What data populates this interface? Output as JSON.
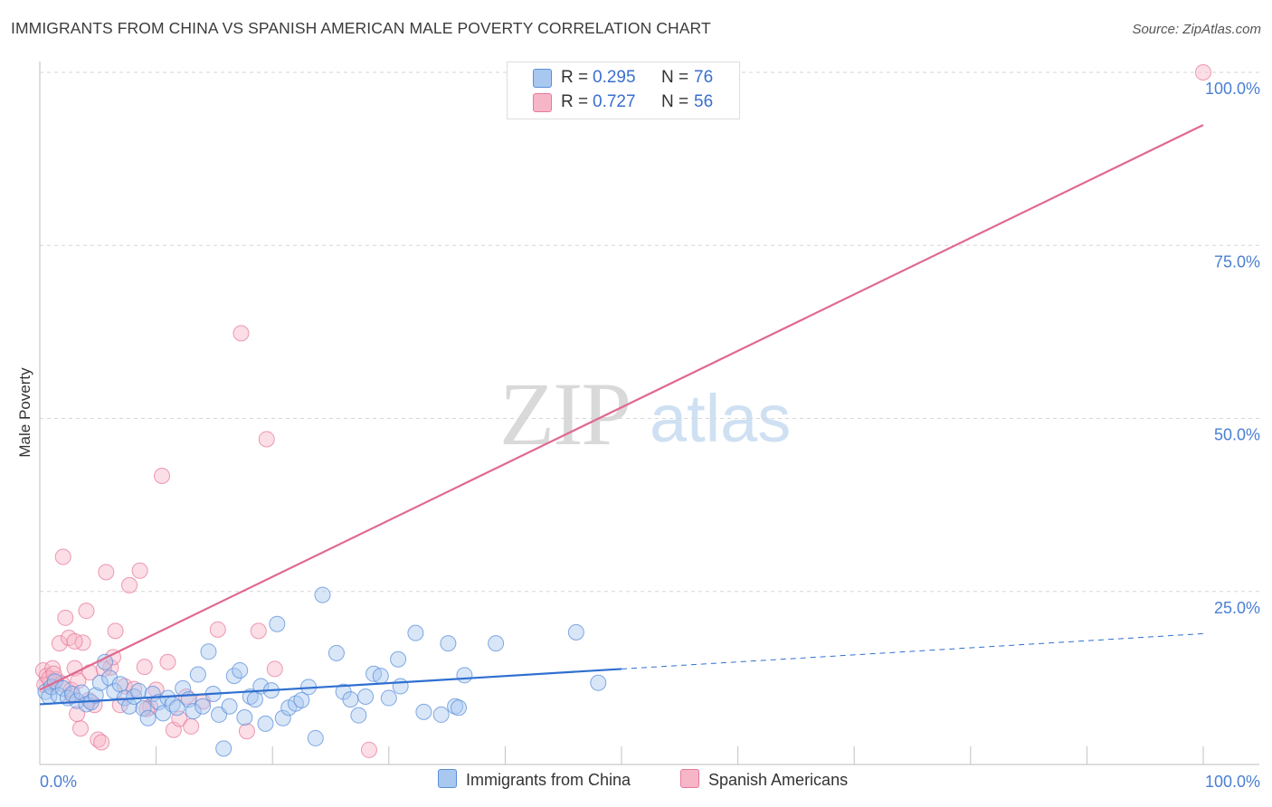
{
  "title": "IMMIGRANTS FROM CHINA VS SPANISH AMERICAN MALE POVERTY CORRELATION CHART",
  "source": "Source: ZipAtlas.com",
  "watermark": {
    "zip": "ZIP",
    "atlas": "atlas"
  },
  "legend_top": {
    "rows": [
      {
        "r_label": "R =",
        "r_value": "0.295",
        "n_label": "N =",
        "n_value": "76",
        "color": "#a9c8f0"
      },
      {
        "r_label": "R =",
        "r_value": "0.727",
        "n_label": "N =",
        "n_value": "56",
        "color": "#f7b6c8"
      }
    ]
  },
  "legend_bottom": {
    "items": [
      {
        "label": "Immigrants from China",
        "color": "#a9c8f0"
      },
      {
        "label": "Spanish Americans",
        "color": "#f7b6c8"
      }
    ]
  },
  "chart_data": {
    "type": "scatter",
    "title": "IMMIGRANTS FROM CHINA VS SPANISH AMERICAN MALE POVERTY CORRELATION CHART",
    "xlabel": "",
    "ylabel": "Male Poverty",
    "xlim": [
      0,
      100
    ],
    "ylim": [
      0,
      100
    ],
    "x_tick_labels": [
      "0.0%",
      "100.0%"
    ],
    "y_tick_labels": [
      "25.0%",
      "50.0%",
      "75.0%",
      "100.0%"
    ],
    "y_ticks": [
      25,
      50,
      75,
      100
    ],
    "grid": true,
    "colors": {
      "blue_fill": "#a9c8f0",
      "blue_stroke": "#5b8fd9",
      "blue_line": "#2f6fd0",
      "pink_fill": "#f7b6c8",
      "pink_stroke": "#e8799b",
      "pink_line": "#e0698f",
      "tick_text": "#4a7fd4"
    },
    "series": [
      {
        "name": "Immigrants from China",
        "R": 0.295,
        "N": 76,
        "trend": {
          "x": [
            0,
            50
          ],
          "y": [
            8.7,
            13.8
          ],
          "dashed_to": [
            100,
            18.9
          ]
        },
        "points": [
          [
            0.5,
            10.5
          ],
          [
            0.8,
            9.8
          ],
          [
            1.0,
            11.2
          ],
          [
            1.3,
            12.0
          ],
          [
            1.6,
            10.0
          ],
          [
            2.0,
            11.0
          ],
          [
            2.4,
            9.6
          ],
          [
            2.8,
            10.2
          ],
          [
            3.2,
            9.2
          ],
          [
            3.6,
            10.4
          ],
          [
            4.0,
            8.7
          ],
          [
            4.4,
            9.0
          ],
          [
            4.8,
            10.0
          ],
          [
            5.2,
            11.8
          ],
          [
            5.6,
            14.8
          ],
          [
            6.0,
            12.5
          ],
          [
            6.4,
            10.6
          ],
          [
            6.9,
            11.6
          ],
          [
            7.3,
            9.6
          ],
          [
            7.7,
            8.4
          ],
          [
            8.1,
            9.8
          ],
          [
            8.5,
            10.6
          ],
          [
            8.9,
            8.1
          ],
          [
            9.3,
            6.7
          ],
          [
            9.7,
            10.2
          ],
          [
            10.2,
            9.0
          ],
          [
            10.6,
            7.4
          ],
          [
            11.0,
            9.6
          ],
          [
            11.4,
            8.7
          ],
          [
            11.8,
            8.2
          ],
          [
            12.3,
            11.0
          ],
          [
            12.8,
            9.4
          ],
          [
            13.2,
            7.7
          ],
          [
            13.6,
            13.0
          ],
          [
            14.0,
            8.4
          ],
          [
            14.5,
            16.3
          ],
          [
            14.9,
            10.2
          ],
          [
            15.4,
            7.2
          ],
          [
            15.8,
            2.3
          ],
          [
            16.3,
            8.4
          ],
          [
            16.7,
            12.8
          ],
          [
            17.2,
            13.6
          ],
          [
            17.6,
            6.8
          ],
          [
            18.1,
            9.8
          ],
          [
            18.5,
            9.4
          ],
          [
            19.0,
            11.3
          ],
          [
            19.4,
            5.9
          ],
          [
            19.9,
            10.7
          ],
          [
            20.4,
            20.3
          ],
          [
            20.9,
            6.7
          ],
          [
            21.4,
            8.2
          ],
          [
            22.0,
            8.8
          ],
          [
            22.5,
            9.3
          ],
          [
            23.1,
            11.2
          ],
          [
            23.7,
            3.8
          ],
          [
            24.3,
            24.5
          ],
          [
            25.5,
            16.1
          ],
          [
            26.1,
            10.5
          ],
          [
            26.7,
            9.4
          ],
          [
            27.4,
            7.1
          ],
          [
            28.0,
            9.8
          ],
          [
            28.7,
            13.1
          ],
          [
            29.3,
            12.8
          ],
          [
            30.0,
            9.6
          ],
          [
            30.8,
            15.2
          ],
          [
            31.0,
            11.3
          ],
          [
            32.3,
            19.0
          ],
          [
            33.0,
            7.6
          ],
          [
            34.5,
            7.2
          ],
          [
            35.1,
            17.5
          ],
          [
            35.7,
            8.4
          ],
          [
            36.5,
            12.9
          ],
          [
            39.2,
            17.5
          ],
          [
            46.1,
            19.1
          ],
          [
            48.0,
            11.8
          ],
          [
            36.0,
            8.2
          ]
        ]
      },
      {
        "name": "Spanish Americans",
        "R": 0.727,
        "N": 56,
        "trend": {
          "x": [
            0,
            100
          ],
          "y": [
            10.8,
            92.4
          ]
        },
        "points": [
          [
            0.3,
            13.6
          ],
          [
            0.6,
            12.8
          ],
          [
            0.9,
            11.8
          ],
          [
            1.1,
            13.9
          ],
          [
            1.4,
            12.3
          ],
          [
            1.7,
            17.5
          ],
          [
            2.0,
            30.0
          ],
          [
            2.2,
            21.2
          ],
          [
            2.5,
            18.3
          ],
          [
            2.8,
            9.9
          ],
          [
            3.0,
            13.9
          ],
          [
            3.2,
            7.3
          ],
          [
            3.5,
            5.2
          ],
          [
            3.7,
            17.6
          ],
          [
            4.0,
            22.2
          ],
          [
            4.3,
            13.3
          ],
          [
            4.7,
            8.6
          ],
          [
            5.0,
            3.6
          ],
          [
            5.3,
            3.2
          ],
          [
            5.7,
            27.8
          ],
          [
            6.1,
            14.0
          ],
          [
            6.5,
            19.3
          ],
          [
            6.9,
            8.6
          ],
          [
            7.3,
            11.3
          ],
          [
            7.7,
            25.9
          ],
          [
            8.1,
            10.9
          ],
          [
            8.6,
            28.0
          ],
          [
            9.0,
            14.1
          ],
          [
            9.5,
            8.3
          ],
          [
            10.0,
            10.8
          ],
          [
            10.5,
            41.7
          ],
          [
            11.0,
            14.8
          ],
          [
            11.5,
            5.0
          ],
          [
            12.0,
            6.6
          ],
          [
            13.0,
            5.5
          ],
          [
            14.0,
            9.1
          ],
          [
            15.3,
            19.5
          ],
          [
            17.3,
            62.3
          ],
          [
            17.8,
            4.8
          ],
          [
            18.8,
            19.3
          ],
          [
            19.5,
            47.0
          ],
          [
            20.2,
            13.8
          ],
          [
            28.3,
            2.1
          ],
          [
            0.4,
            11.5
          ],
          [
            0.8,
            12.4
          ],
          [
            1.2,
            13.1
          ],
          [
            1.9,
            11.7
          ],
          [
            2.7,
            10.8
          ],
          [
            3.3,
            12.1
          ],
          [
            4.2,
            9.3
          ],
          [
            5.5,
            13.8
          ],
          [
            6.3,
            15.5
          ],
          [
            9.2,
            8.0
          ],
          [
            12.6,
            9.8
          ],
          [
            100.0,
            100.0
          ],
          [
            3.0,
            17.8
          ]
        ]
      }
    ]
  }
}
